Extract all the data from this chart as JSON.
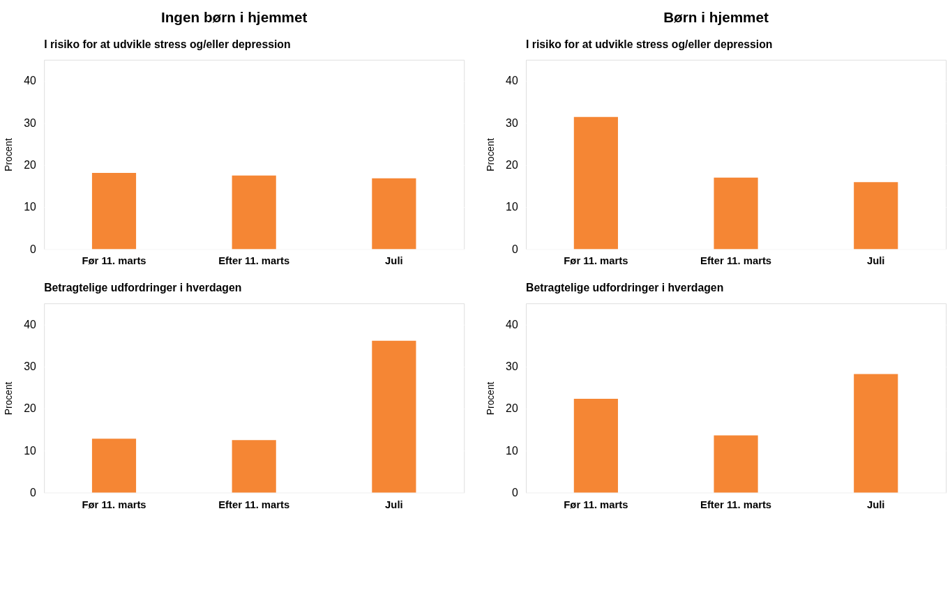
{
  "chart_data": [
    {
      "type": "bar",
      "title": "Ingen børn i hjemmet",
      "subtitle": "I risiko for at udvikle stress og/eller depression",
      "ylabel": "Procent",
      "categories": [
        "Før 11. marts",
        "Efter 11. marts",
        "Juli"
      ],
      "values": [
        18.1,
        17.5,
        16.8
      ],
      "color": "#f58634",
      "ylim": [
        0,
        45
      ],
      "yticks": [
        0,
        10,
        20,
        30,
        40
      ],
      "grid": "y"
    },
    {
      "type": "bar",
      "title": "Børn i hjemmet",
      "subtitle": "I risiko for at udvikle stress og/eller depression",
      "ylabel": "Procent",
      "categories": [
        "Før 11. marts",
        "Efter 11. marts",
        "Juli"
      ],
      "values": [
        31.4,
        17.0,
        15.9
      ],
      "color": "#f58634",
      "ylim": [
        0,
        45
      ],
      "yticks": [
        0,
        10,
        20,
        30,
        40
      ],
      "grid": "y"
    },
    {
      "type": "bar",
      "subtitle": "Betragtelige udfordringer i hverdagen",
      "ylabel": "Procent",
      "categories": [
        "Før 11. marts",
        "Efter 11. marts",
        "Juli"
      ],
      "values": [
        12.8,
        12.5,
        36.1
      ],
      "color": "#f58634",
      "ylim": [
        0,
        45
      ],
      "yticks": [
        0,
        10,
        20,
        30,
        40
      ],
      "grid": "y"
    },
    {
      "type": "bar",
      "subtitle": "Betragtelige udfordringer i hverdagen",
      "ylabel": "Procent",
      "categories": [
        "Før 11. marts",
        "Efter 11. marts",
        "Juli"
      ],
      "values": [
        22.3,
        13.6,
        28.2
      ],
      "color": "#f58634",
      "ylim": [
        0,
        45
      ],
      "yticks": [
        0,
        10,
        20,
        30,
        40
      ],
      "grid": "y"
    }
  ]
}
